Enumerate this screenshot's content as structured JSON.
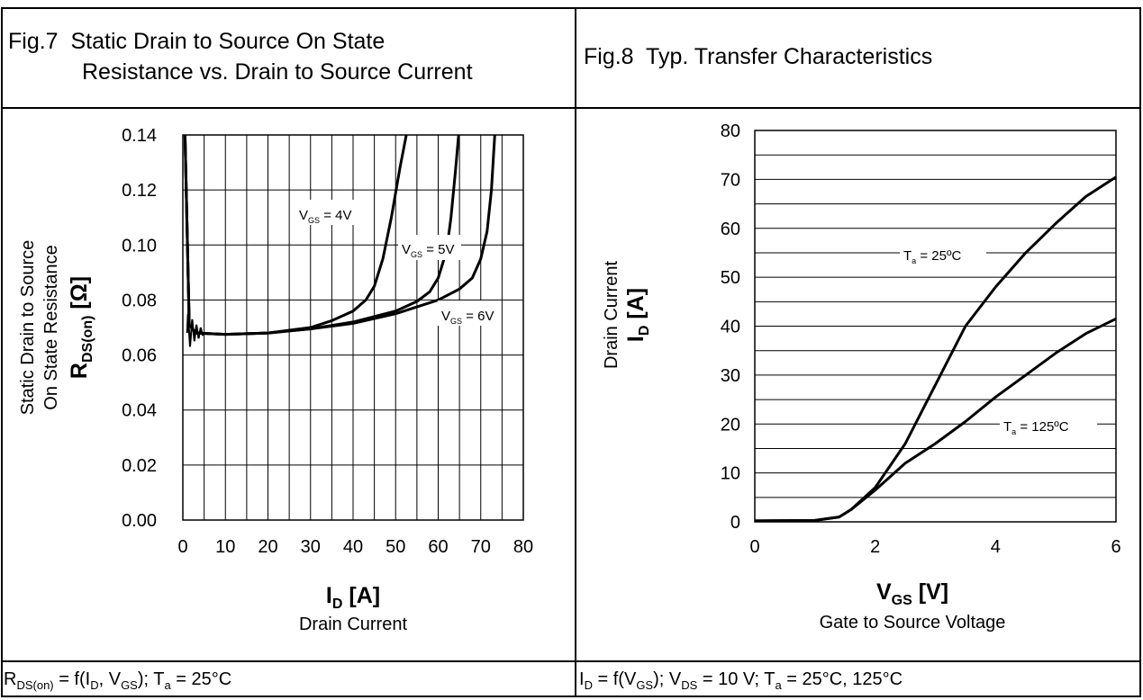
{
  "fig7": {
    "number": "Fig.7",
    "title_line1": "Static Drain to Source On State",
    "title_line2": "Resistance vs. Drain to Source Current",
    "footer": {
      "p1": "R",
      "p1_sub": "DS(on)",
      "p2": " = f(I",
      "p2_sub": "D",
      "p3": ", V",
      "p3_sub": "GS",
      "p4": "); T",
      "p4_sub": "a",
      "p5": " = 25°C"
    }
  },
  "fig8": {
    "number": "Fig.8",
    "title": "Typ. Transfer Characteristics",
    "footer": {
      "p1": "I",
      "p1_sub": "D",
      "p2": " = f(V",
      "p2_sub": "GS",
      "p3": "); V",
      "p3_sub": "DS",
      "p4": " = 10 V; T",
      "p4_sub": "a",
      "p5": " = 25°C, 125°C"
    }
  },
  "chart_data": [
    {
      "type": "line",
      "grid": true,
      "xlim": [
        0,
        80
      ],
      "ylim": [
        0,
        0.14
      ],
      "x_ticks": [
        "0",
        "10",
        "20",
        "30",
        "40",
        "50",
        "60",
        "70",
        "80"
      ],
      "y_ticks": [
        "0.00",
        "0.02",
        "0.04",
        "0.06",
        "0.08",
        "0.10",
        "0.12",
        "0.14"
      ],
      "xlabel": {
        "main": "I",
        "sub": "D",
        "unit": " [A]",
        "desc": "Drain Current"
      },
      "ylabel": {
        "desc1": "Static Drain to Source",
        "desc2": "On State Resistance",
        "main": "R",
        "sub": "DS(on)",
        "unit": " [Ω]"
      },
      "series": [
        {
          "name": "VGS = 4V",
          "label": {
            "main": "V",
            "sub": "GS",
            "rest": " = 4V"
          },
          "points": [
            [
              0.5,
              0.14
            ],
            [
              1.5,
              0.071
            ],
            [
              3,
              0.068
            ],
            [
              10,
              0.0675
            ],
            [
              20,
              0.068
            ],
            [
              30,
              0.07
            ],
            [
              35,
              0.0725
            ],
            [
              40,
              0.076
            ],
            [
              43,
              0.08
            ],
            [
              45,
              0.085
            ],
            [
              47,
              0.095
            ],
            [
              49,
              0.11
            ],
            [
              51,
              0.128
            ],
            [
              52.5,
              0.14
            ]
          ]
        },
        {
          "name": "VGS = 5V",
          "label": {
            "main": "V",
            "sub": "GS",
            "rest": " = 5V"
          },
          "points": [
            [
              0.5,
              0.14
            ],
            [
              1.5,
              0.071
            ],
            [
              3,
              0.068
            ],
            [
              10,
              0.0675
            ],
            [
              20,
              0.068
            ],
            [
              30,
              0.0695
            ],
            [
              40,
              0.072
            ],
            [
              50,
              0.076
            ],
            [
              55,
              0.0795
            ],
            [
              58,
              0.083
            ],
            [
              60,
              0.088
            ],
            [
              62,
              0.098
            ],
            [
              63,
              0.11
            ],
            [
              64,
              0.126
            ],
            [
              64.8,
              0.14
            ]
          ]
        },
        {
          "name": "VGS = 6V",
          "label": {
            "main": "V",
            "sub": "GS",
            "rest": " = 6V"
          },
          "points": [
            [
              0.5,
              0.14
            ],
            [
              1.5,
              0.071
            ],
            [
              3,
              0.068
            ],
            [
              10,
              0.0675
            ],
            [
              20,
              0.068
            ],
            [
              30,
              0.0695
            ],
            [
              40,
              0.0715
            ],
            [
              50,
              0.075
            ],
            [
              60,
              0.08
            ],
            [
              65,
              0.084
            ],
            [
              68,
              0.088
            ],
            [
              70,
              0.095
            ],
            [
              71.5,
              0.105
            ],
            [
              72.5,
              0.12
            ],
            [
              73.3,
              0.14
            ]
          ]
        }
      ]
    },
    {
      "type": "line",
      "grid": true,
      "xlim": [
        0,
        6
      ],
      "ylim": [
        0,
        80
      ],
      "x_ticks": [
        "0",
        "2",
        "4",
        "6"
      ],
      "y_ticks": [
        "0",
        "10",
        "20",
        "30",
        "40",
        "50",
        "60",
        "70",
        "80"
      ],
      "xlabel": {
        "main": "V",
        "sub": "GS",
        "unit": " [V]",
        "desc": "Gate to Source Voltage"
      },
      "ylabel": {
        "desc1": "Drain Current",
        "main": "I",
        "sub": "D",
        "unit": " [A]"
      },
      "series": [
        {
          "name": "Ta = 25ºC",
          "label": {
            "main": "T",
            "sub": "a",
            "rest": " = 25ºC"
          },
          "points": [
            [
              0,
              0.2
            ],
            [
              1.0,
              0.3
            ],
            [
              1.4,
              1.0
            ],
            [
              1.6,
              2.5
            ],
            [
              2.0,
              7.0
            ],
            [
              2.5,
              16
            ],
            [
              3.0,
              28
            ],
            [
              3.5,
              40
            ],
            [
              4.0,
              48
            ],
            [
              4.5,
              55
            ],
            [
              5.0,
              61
            ],
            [
              5.5,
              66.5
            ],
            [
              6.0,
              70.5
            ]
          ]
        },
        {
          "name": "Ta = 125ºC",
          "label": {
            "main": "T",
            "sub": "a",
            "rest": " = 125ºC"
          },
          "points": [
            [
              0,
              0.2
            ],
            [
              1.0,
              0.3
            ],
            [
              1.4,
              1.0
            ],
            [
              1.6,
              2.5
            ],
            [
              2.0,
              6.5
            ],
            [
              2.5,
              12
            ],
            [
              3.0,
              16
            ],
            [
              3.5,
              20.5
            ],
            [
              4.0,
              25.5
            ],
            [
              4.5,
              30
            ],
            [
              5.0,
              34.5
            ],
            [
              5.5,
              38.5
            ],
            [
              6.0,
              41.5
            ]
          ]
        }
      ]
    }
  ]
}
